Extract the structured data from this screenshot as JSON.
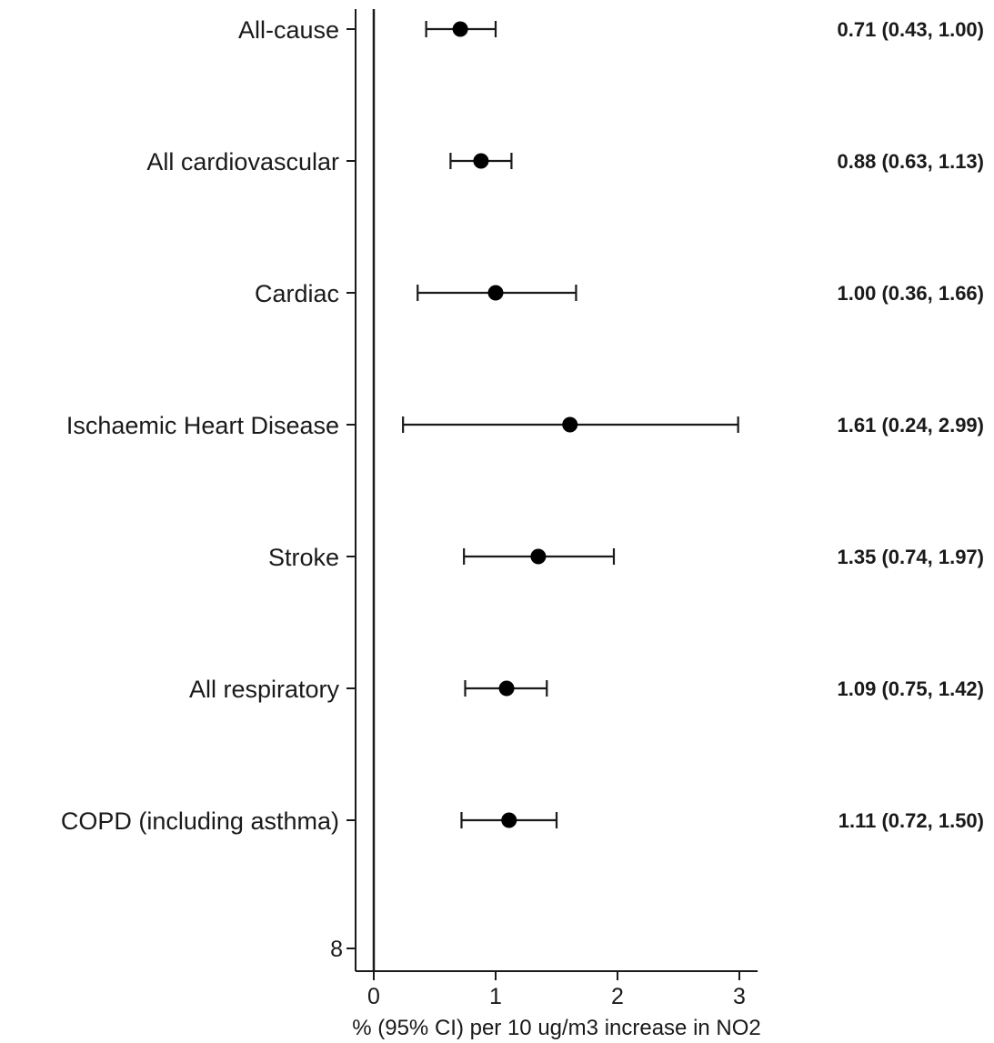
{
  "chart_data": {
    "type": "forest",
    "xlabel": "% (95% CI) per 10 ug/m3 increase in NO2",
    "x_ticks": [
      "0",
      "1",
      "2",
      "3"
    ],
    "xlim": [
      0,
      3
    ],
    "y_extra_tick": "8",
    "reference_line_x": 0,
    "rows": [
      {
        "label": "All-cause",
        "estimate": 0.71,
        "lower": 0.43,
        "upper": 1.0,
        "text": "0.71 (0.43, 1.00)"
      },
      {
        "label": "All cardiovascular",
        "estimate": 0.88,
        "lower": 0.63,
        "upper": 1.13,
        "text": "0.88 (0.63, 1.13)"
      },
      {
        "label": "Cardiac",
        "estimate": 1.0,
        "lower": 0.36,
        "upper": 1.66,
        "text": "1.00 (0.36, 1.66)"
      },
      {
        "label": "Ischaemic Heart Disease",
        "estimate": 1.61,
        "lower": 0.24,
        "upper": 2.99,
        "text": "1.61 (0.24, 2.99)"
      },
      {
        "label": "Stroke",
        "estimate": 1.35,
        "lower": 0.74,
        "upper": 1.97,
        "text": "1.35 (0.74, 1.97)"
      },
      {
        "label": "All respiratory",
        "estimate": 1.09,
        "lower": 0.75,
        "upper": 1.42,
        "text": "1.09 (0.75, 1.42)"
      },
      {
        "label": "COPD (including asthma)",
        "estimate": 1.11,
        "lower": 0.72,
        "upper": 1.5,
        "text": "1.11 (0.72, 1.50)"
      }
    ],
    "grid": false,
    "legend": "none",
    "colors": {
      "marker": "#000000",
      "line": "#1a1a1a"
    }
  }
}
